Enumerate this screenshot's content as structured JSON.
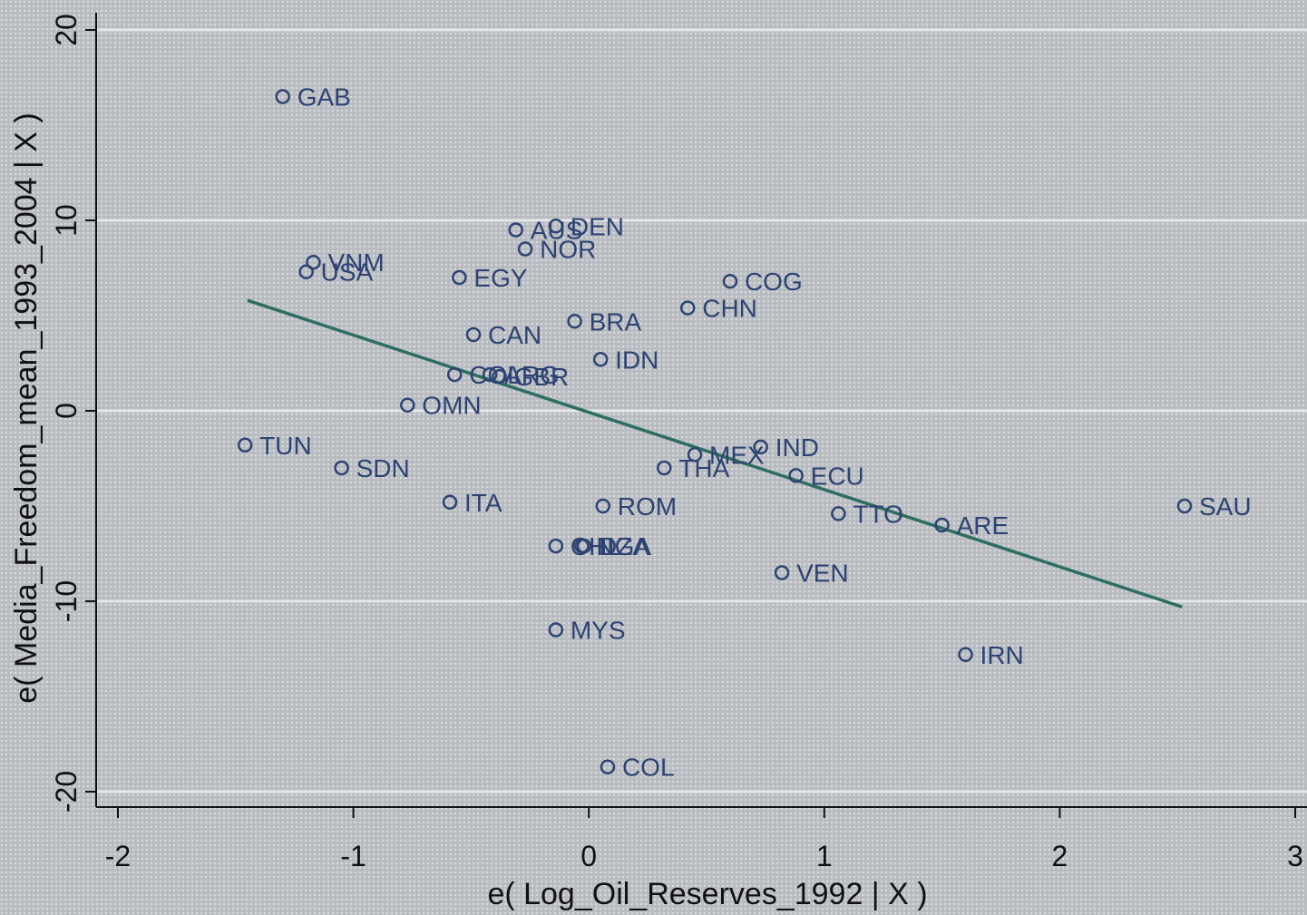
{
  "chart_data": {
    "type": "scatter",
    "xlabel": "e( Log_Oil_Reserves_1992 | X )",
    "ylabel": "e( Media_Freedom_mean_1993_2004 | X )",
    "xlim": [
      -2,
      3
    ],
    "ylim": [
      -20,
      20
    ],
    "x_ticks": [
      -2,
      -1,
      0,
      1,
      2,
      3
    ],
    "y_ticks": [
      -20,
      -10,
      0,
      10,
      20
    ],
    "grid": "horizontal",
    "fit_line": {
      "x": [
        -1.45,
        2.52
      ],
      "y": [
        5.8,
        -10.3
      ]
    },
    "points": [
      {
        "label": "GAB",
        "x": -1.3,
        "y": 16.5
      },
      {
        "label": "VNM",
        "x": -1.17,
        "y": 7.8
      },
      {
        "label": "USA",
        "x": -1.2,
        "y": 7.3
      },
      {
        "label": "AUS",
        "x": -0.31,
        "y": 9.5
      },
      {
        "label": "DEN",
        "x": -0.14,
        "y": 9.7
      },
      {
        "label": "NOR",
        "x": -0.27,
        "y": 8.5
      },
      {
        "label": "EGY",
        "x": -0.55,
        "y": 7.0
      },
      {
        "label": "COG",
        "x": 0.6,
        "y": 6.8
      },
      {
        "label": "CHN",
        "x": 0.42,
        "y": 5.4
      },
      {
        "label": "CAN",
        "x": -0.49,
        "y": 4.0
      },
      {
        "label": "BRA",
        "x": -0.06,
        "y": 4.7
      },
      {
        "label": "IDN",
        "x": 0.05,
        "y": 2.7
      },
      {
        "label": "COL",
        "x": -0.57,
        "y": 1.9
      },
      {
        "label": "ARG",
        "x": -0.42,
        "y": 1.9
      },
      {
        "label": "GBR",
        "x": -0.38,
        "y": 1.8
      },
      {
        "label": "OMN",
        "x": -0.77,
        "y": 0.3
      },
      {
        "label": "TUN",
        "x": -1.46,
        "y": -1.8
      },
      {
        "label": "SDN",
        "x": -1.05,
        "y": -3.0
      },
      {
        "label": "IND",
        "x": 0.73,
        "y": -1.9
      },
      {
        "label": "MEX",
        "x": 0.45,
        "y": -2.3
      },
      {
        "label": "THA",
        "x": 0.32,
        "y": -3.0
      },
      {
        "label": "ECU",
        "x": 0.88,
        "y": -3.4
      },
      {
        "label": "ITA",
        "x": -0.59,
        "y": -4.8
      },
      {
        "label": "ROM",
        "x": 0.06,
        "y": -5.0
      },
      {
        "label": "TTO",
        "x": 1.06,
        "y": -5.4
      },
      {
        "label": "ARE",
        "x": 1.5,
        "y": -6.0
      },
      {
        "label": "SAU",
        "x": 2.53,
        "y": -5.0
      },
      {
        "label": "CHL",
        "x": -0.14,
        "y": -7.1
      },
      {
        "label": "DZA",
        "x": -0.02,
        "y": -7.1
      },
      {
        "label": "NGA",
        "x": -0.03,
        "y": -7.1
      },
      {
        "label": "VEN",
        "x": 0.82,
        "y": -8.5
      },
      {
        "label": "MYS",
        "x": -0.14,
        "y": -11.5
      },
      {
        "label": "IRN",
        "x": 1.6,
        "y": -12.8
      },
      {
        "label": "COL",
        "x": 0.08,
        "y": -18.7
      }
    ]
  },
  "colors": {
    "marker": "#2d4373",
    "fit_line": "#2e6e62",
    "axis": "#111111"
  }
}
